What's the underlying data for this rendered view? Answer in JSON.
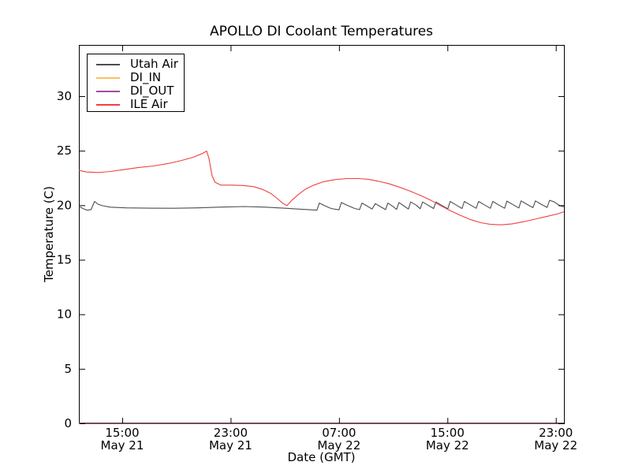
{
  "chart_data": {
    "type": "line",
    "title": "APOLLO DI Coolant Temperatures",
    "xlabel": "Date (GMT)",
    "ylabel": "Temperature (C)",
    "grid": false,
    "legend_position": "upper left",
    "x_unit": "hours since May 21 00:00 GMT",
    "xlim": [
      11.8,
      47.6
    ],
    "ylim": [
      0,
      34.7
    ],
    "y_ticks": [
      0,
      5,
      10,
      15,
      20,
      25,
      30
    ],
    "x_ticks": [
      {
        "value": 15,
        "time": "15:00",
        "date": "May 21"
      },
      {
        "value": 23,
        "time": "23:00",
        "date": "May 21"
      },
      {
        "value": 31,
        "time": "07:00",
        "date": "May 22"
      },
      {
        "value": 39,
        "time": "15:00",
        "date": "May 22"
      },
      {
        "value": 47,
        "time": "23:00",
        "date": "May 22"
      }
    ],
    "zero_overlap_color": "#744c58",
    "series": [
      {
        "name": "Utah Air",
        "color": "#4d4d4d",
        "points": [
          [
            11.8,
            19.9
          ],
          [
            12.1,
            19.7
          ],
          [
            12.4,
            19.55
          ],
          [
            12.7,
            19.6
          ],
          [
            12.96,
            20.35
          ],
          [
            13.2,
            20.1
          ],
          [
            13.55,
            19.95
          ],
          [
            14.13,
            19.82
          ],
          [
            15.29,
            19.76
          ],
          [
            17.04,
            19.73
          ],
          [
            18.78,
            19.72
          ],
          [
            20.53,
            19.76
          ],
          [
            22.27,
            19.83
          ],
          [
            24.02,
            19.88
          ],
          [
            25.47,
            19.83
          ],
          [
            26.93,
            19.73
          ],
          [
            28.38,
            19.62
          ],
          [
            29.37,
            19.55
          ],
          [
            29.55,
            20.2
          ],
          [
            29.95,
            19.95
          ],
          [
            30.42,
            19.7
          ],
          [
            31.0,
            19.58
          ],
          [
            31.17,
            20.25
          ],
          [
            31.58,
            20.0
          ],
          [
            32.16,
            19.7
          ],
          [
            32.51,
            19.6
          ],
          [
            32.69,
            20.2
          ],
          [
            33.04,
            19.95
          ],
          [
            33.44,
            19.65
          ],
          [
            33.68,
            20.15
          ],
          [
            34.08,
            19.85
          ],
          [
            34.43,
            19.6
          ],
          [
            34.61,
            20.2
          ],
          [
            34.96,
            19.9
          ],
          [
            35.25,
            19.62
          ],
          [
            35.42,
            20.25
          ],
          [
            35.77,
            19.95
          ],
          [
            36.12,
            19.65
          ],
          [
            36.29,
            20.3
          ],
          [
            36.7,
            20.0
          ],
          [
            36.99,
            19.68
          ],
          [
            37.17,
            20.3
          ],
          [
            37.57,
            20.0
          ],
          [
            37.98,
            19.7
          ],
          [
            38.16,
            20.3
          ],
          [
            38.56,
            20.0
          ],
          [
            39.03,
            19.68
          ],
          [
            39.2,
            20.35
          ],
          [
            39.61,
            20.05
          ],
          [
            40.08,
            19.7
          ],
          [
            40.25,
            20.35
          ],
          [
            40.66,
            20.05
          ],
          [
            41.12,
            19.72
          ],
          [
            41.3,
            20.35
          ],
          [
            41.71,
            20.05
          ],
          [
            42.17,
            19.72
          ],
          [
            42.35,
            20.35
          ],
          [
            42.75,
            20.05
          ],
          [
            43.22,
            19.72
          ],
          [
            43.39,
            20.38
          ],
          [
            43.8,
            20.08
          ],
          [
            44.27,
            19.75
          ],
          [
            44.44,
            20.4
          ],
          [
            44.85,
            20.1
          ],
          [
            45.31,
            19.78
          ],
          [
            45.49,
            20.4
          ],
          [
            45.9,
            20.1
          ],
          [
            46.36,
            19.8
          ],
          [
            46.54,
            20.45
          ],
          [
            46.89,
            20.3
          ],
          [
            47.3,
            19.95
          ],
          [
            47.59,
            19.85
          ]
        ]
      },
      {
        "name": "DI_IN",
        "color": "#fcbf5f",
        "points": [
          [
            11.8,
            0
          ],
          [
            47.59,
            0
          ]
        ]
      },
      {
        "name": "DI_OUT",
        "color": "#9a4ea2",
        "points": [
          [
            11.8,
            0
          ],
          [
            47.59,
            0
          ]
        ]
      },
      {
        "name": "ILE Air",
        "color": "#ee4141",
        "points": [
          [
            11.8,
            23.2
          ],
          [
            12.38,
            23.05
          ],
          [
            13.25,
            23.0
          ],
          [
            14.13,
            23.1
          ],
          [
            15.0,
            23.25
          ],
          [
            16.16,
            23.45
          ],
          [
            17.33,
            23.6
          ],
          [
            18.49,
            23.85
          ],
          [
            19.36,
            24.1
          ],
          [
            20.24,
            24.4
          ],
          [
            20.93,
            24.75
          ],
          [
            21.23,
            24.97
          ],
          [
            21.4,
            24.3
          ],
          [
            21.63,
            22.7
          ],
          [
            21.86,
            22.1
          ],
          [
            22.27,
            21.85
          ],
          [
            23.15,
            21.85
          ],
          [
            24.02,
            21.8
          ],
          [
            24.72,
            21.7
          ],
          [
            25.36,
            21.45
          ],
          [
            25.94,
            21.1
          ],
          [
            26.46,
            20.6
          ],
          [
            26.87,
            20.15
          ],
          [
            27.16,
            19.97
          ],
          [
            27.51,
            20.45
          ],
          [
            27.97,
            20.95
          ],
          [
            28.55,
            21.5
          ],
          [
            29.14,
            21.85
          ],
          [
            29.83,
            22.15
          ],
          [
            30.71,
            22.35
          ],
          [
            31.58,
            22.45
          ],
          [
            32.45,
            22.45
          ],
          [
            33.15,
            22.38
          ],
          [
            33.91,
            22.2
          ],
          [
            34.61,
            22.0
          ],
          [
            35.36,
            21.7
          ],
          [
            36.24,
            21.3
          ],
          [
            37.11,
            20.85
          ],
          [
            37.86,
            20.4
          ],
          [
            38.44,
            20.0
          ],
          [
            39.14,
            19.55
          ],
          [
            39.9,
            19.1
          ],
          [
            40.66,
            18.7
          ],
          [
            41.47,
            18.4
          ],
          [
            42.17,
            18.25
          ],
          [
            42.99,
            18.2
          ],
          [
            43.8,
            18.3
          ],
          [
            44.67,
            18.5
          ],
          [
            45.55,
            18.75
          ],
          [
            46.42,
            19.0
          ],
          [
            47.12,
            19.2
          ],
          [
            47.59,
            19.4
          ]
        ]
      }
    ]
  }
}
